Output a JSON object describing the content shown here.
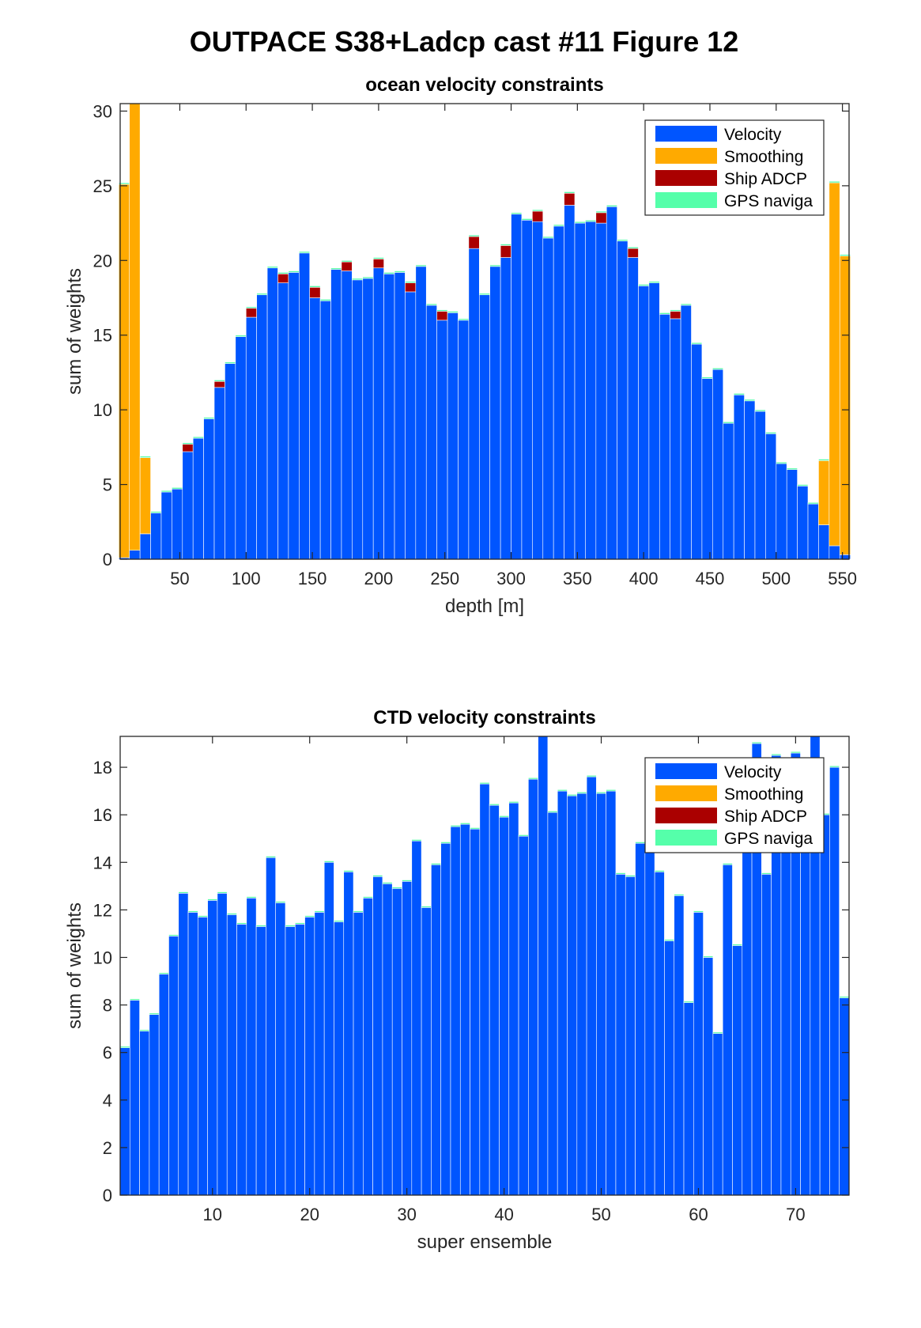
{
  "figure_title": "OUTPACE S38+Ladcp cast #11  Figure 12",
  "colors": {
    "velocity": "#0055ff",
    "smoothing": "#ffaa00",
    "ship_adcp": "#aa0000",
    "gps": "#55ffaa"
  },
  "chart_data": [
    {
      "type": "bar",
      "stacked": true,
      "title": "ocean velocity constraints",
      "xlabel": "depth [m]",
      "ylabel": "sum of weights",
      "xlim": [
        5,
        555
      ],
      "ylim": [
        0,
        30.5
      ],
      "xticks": [
        50,
        100,
        150,
        200,
        250,
        300,
        350,
        400,
        450,
        500,
        550
      ],
      "yticks": [
        0,
        5,
        10,
        15,
        20,
        25,
        30
      ],
      "bin_width": 8,
      "grid": false,
      "legend_position": "top-right",
      "legend": [
        "Velocity",
        "Smoothing",
        "Ship ADCP",
        "GPS naviga"
      ],
      "x": [
        8,
        16,
        24,
        32,
        40,
        48,
        56,
        64,
        72,
        80,
        88,
        96,
        104,
        112,
        120,
        128,
        136,
        144,
        152,
        160,
        168,
        176,
        184,
        192,
        200,
        208,
        216,
        224,
        232,
        240,
        248,
        256,
        264,
        272,
        280,
        288,
        296,
        304,
        312,
        320,
        328,
        336,
        344,
        352,
        360,
        368,
        376,
        384,
        392,
        400,
        408,
        416,
        424,
        432,
        440,
        448,
        456,
        464,
        472,
        480,
        488,
        496,
        504,
        512,
        520,
        528,
        536,
        544,
        552
      ],
      "series": [
        {
          "name": "Velocity",
          "values": [
            0.1,
            0.6,
            1.7,
            3.1,
            4.5,
            4.7,
            7.2,
            8.1,
            9.4,
            11.5,
            13.1,
            14.9,
            16.2,
            17.7,
            19.5,
            18.5,
            19.2,
            20.5,
            17.5,
            17.3,
            19.4,
            19.3,
            18.7,
            18.8,
            19.5,
            19.1,
            19.2,
            17.9,
            19.6,
            17.0,
            16.0,
            16.5,
            16.0,
            20.8,
            17.7,
            19.6,
            20.2,
            23.1,
            22.7,
            22.6,
            21.5,
            22.3,
            23.7,
            22.5,
            22.6,
            22.5,
            23.6,
            21.3,
            20.2,
            18.3,
            18.5,
            16.4,
            16.1,
            17.0,
            14.4,
            12.1,
            12.7,
            9.1,
            11.0,
            10.6,
            9.9,
            8.4,
            6.4,
            6.0,
            4.9,
            3.7,
            2.3,
            0.9,
            0.3
          ]
        },
        {
          "name": "Smoothing",
          "values": [
            25.0,
            30.4,
            5.1,
            0,
            0,
            0,
            0,
            0,
            0,
            0,
            0,
            0,
            0,
            0,
            0,
            0,
            0,
            0,
            0,
            0,
            0,
            0,
            0,
            0,
            0,
            0,
            0,
            0,
            0,
            0,
            0,
            0,
            0,
            0,
            0,
            0,
            0,
            0,
            0,
            0,
            0,
            0,
            0,
            0,
            0,
            0,
            0,
            0,
            0,
            0,
            0,
            0,
            0,
            0,
            0,
            0,
            0,
            0,
            0,
            0,
            0,
            0,
            0,
            0,
            0,
            0,
            4.3,
            24.3,
            20.0
          ]
        },
        {
          "name": "Ship ADCP",
          "values": [
            0,
            0,
            0,
            0,
            0,
            0,
            0.5,
            0,
            0,
            0.4,
            0,
            0,
            0.6,
            0,
            0,
            0.6,
            0,
            0,
            0.7,
            0,
            0,
            0.6,
            0,
            0,
            0.6,
            0,
            0,
            0.6,
            0,
            0,
            0.6,
            0,
            0,
            0.8,
            0,
            0,
            0.8,
            0,
            0,
            0.7,
            0,
            0,
            0.8,
            0,
            0,
            0.7,
            0,
            0,
            0.6,
            0,
            0,
            0,
            0.5,
            0,
            0,
            0,
            0,
            0,
            0,
            0,
            0,
            0,
            0,
            0,
            0,
            0,
            0,
            0,
            0
          ]
        },
        {
          "name": "GPS naviga",
          "values": [
            0.1,
            0.1,
            0.1,
            0.1,
            0.1,
            0.1,
            0.1,
            0.1,
            0.1,
            0.1,
            0.1,
            0.1,
            0.1,
            0.1,
            0.1,
            0.1,
            0.1,
            0.1,
            0.1,
            0.1,
            0.1,
            0.1,
            0.1,
            0.1,
            0.1,
            0.1,
            0.1,
            0.1,
            0.1,
            0.1,
            0.1,
            0.1,
            0.1,
            0.1,
            0.1,
            0.1,
            0.1,
            0.1,
            0.1,
            0.1,
            0.1,
            0.1,
            0.1,
            0.1,
            0.1,
            0.1,
            0.1,
            0.1,
            0.1,
            0.1,
            0.1,
            0.1,
            0.1,
            0.1,
            0.1,
            0.1,
            0.1,
            0.1,
            0.1,
            0.1,
            0.1,
            0.1,
            0.1,
            0.1,
            0.1,
            0.1,
            0.1,
            0.1,
            0.1
          ]
        }
      ]
    },
    {
      "type": "bar",
      "stacked": true,
      "title": "CTD velocity constraints",
      "xlabel": "super ensemble",
      "ylabel": "sum of weights",
      "xlim": [
        0.5,
        75.5
      ],
      "ylim": [
        0,
        19.3
      ],
      "xticks": [
        10,
        20,
        30,
        40,
        50,
        60,
        70
      ],
      "yticks": [
        0,
        2,
        4,
        6,
        8,
        10,
        12,
        14,
        16,
        18
      ],
      "bin_width": 1,
      "grid": false,
      "legend_position": "top-right",
      "legend": [
        "Velocity",
        "Smoothing",
        "Ship ADCP",
        "GPS naviga"
      ],
      "x": [
        1,
        2,
        3,
        4,
        5,
        6,
        7,
        8,
        9,
        10,
        11,
        12,
        13,
        14,
        15,
        16,
        17,
        18,
        19,
        20,
        21,
        22,
        23,
        24,
        25,
        26,
        27,
        28,
        29,
        30,
        31,
        32,
        33,
        34,
        35,
        36,
        37,
        38,
        39,
        40,
        41,
        42,
        43,
        44,
        45,
        46,
        47,
        48,
        49,
        50,
        51,
        52,
        53,
        54,
        55,
        56,
        57,
        58,
        59,
        60,
        61,
        62,
        63,
        64,
        65,
        66,
        67,
        68,
        69,
        70,
        71,
        72,
        73,
        74,
        75
      ],
      "series": [
        {
          "name": "Velocity",
          "values": [
            6.2,
            8.2,
            6.9,
            7.6,
            9.3,
            10.9,
            12.7,
            11.9,
            11.7,
            12.4,
            12.7,
            11.8,
            11.4,
            12.5,
            11.3,
            14.2,
            12.3,
            11.3,
            11.4,
            11.7,
            11.9,
            14.0,
            11.5,
            13.6,
            11.9,
            12.5,
            13.4,
            13.1,
            12.9,
            13.2,
            14.9,
            12.1,
            13.9,
            14.8,
            15.5,
            15.6,
            15.4,
            17.3,
            16.4,
            15.9,
            16.5,
            15.1,
            17.5,
            19.3,
            16.1,
            17.0,
            16.8,
            16.9,
            17.6,
            16.9,
            17.0,
            13.5,
            13.4,
            14.8,
            14.6,
            13.6,
            10.7,
            12.6,
            8.1,
            11.9,
            10.0,
            6.8,
            13.9,
            10.5,
            14.5,
            19.0,
            13.5,
            18.5,
            15.0,
            18.6,
            17.5,
            19.3,
            16.0,
            18.0,
            8.3
          ]
        },
        {
          "name": "Smoothing",
          "values": [
            0,
            0,
            0,
            0,
            0,
            0,
            0,
            0,
            0,
            0,
            0,
            0,
            0,
            0,
            0,
            0,
            0,
            0,
            0,
            0,
            0,
            0,
            0,
            0,
            0,
            0,
            0,
            0,
            0,
            0,
            0,
            0,
            0,
            0,
            0,
            0,
            0,
            0,
            0,
            0,
            0,
            0,
            0,
            0,
            0,
            0,
            0,
            0,
            0,
            0,
            0,
            0,
            0,
            0,
            0,
            0,
            0,
            0,
            0,
            0,
            0,
            0,
            0,
            0,
            0,
            0,
            0,
            0,
            0,
            0,
            0,
            0,
            0,
            0,
            0
          ]
        },
        {
          "name": "Ship ADCP",
          "values": [
            0,
            0,
            0,
            0,
            0,
            0,
            0,
            0,
            0,
            0,
            0,
            0,
            0,
            0,
            0,
            0,
            0,
            0,
            0,
            0,
            0,
            0,
            0,
            0,
            0,
            0,
            0,
            0,
            0,
            0,
            0,
            0,
            0,
            0,
            0,
            0,
            0,
            0,
            0,
            0,
            0,
            0,
            0,
            0,
            0,
            0,
            0,
            0,
            0,
            0,
            0,
            0,
            0,
            0,
            0,
            0,
            0,
            0,
            0,
            0,
            0,
            0,
            0,
            0,
            0,
            0,
            0,
            0,
            0,
            0,
            0,
            0,
            0,
            0,
            0
          ]
        },
        {
          "name": "GPS naviga",
          "values": [
            0.06,
            0.06,
            0.06,
            0.06,
            0.06,
            0.06,
            0.06,
            0.06,
            0.06,
            0.06,
            0.06,
            0.06,
            0.06,
            0.06,
            0.06,
            0.06,
            0.06,
            0.06,
            0.06,
            0.06,
            0.06,
            0.06,
            0.06,
            0.06,
            0.06,
            0.06,
            0.06,
            0.06,
            0.06,
            0.06,
            0.06,
            0.06,
            0.06,
            0.06,
            0.06,
            0.06,
            0.06,
            0.06,
            0.06,
            0.06,
            0.06,
            0.06,
            0.06,
            0.06,
            0.06,
            0.06,
            0.06,
            0.06,
            0.06,
            0.06,
            0.06,
            0.06,
            0.06,
            0.06,
            0.06,
            0.06,
            0.06,
            0.06,
            0.06,
            0.06,
            0.06,
            0.06,
            0.06,
            0.06,
            0.06,
            0.06,
            0.06,
            0.06,
            0.06,
            0.06,
            0.06,
            0.06,
            0.06,
            0.06,
            0.06
          ]
        }
      ]
    }
  ]
}
